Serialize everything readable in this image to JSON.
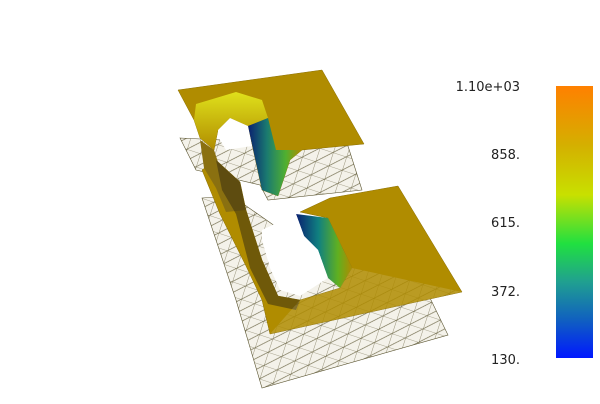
{
  "colorbar": {
    "labels": [
      "1.10e+03",
      "858.",
      "615.",
      "372.",
      "130."
    ],
    "colors": {
      "max": "#ff8000",
      "upper": "#d4b000",
      "mid_high": "#c8e000",
      "mid": "#20e040",
      "mid_low": "#20a090",
      "low": "#1060c0",
      "min": "#0018ff"
    }
  },
  "surface": {
    "base_color": "#b08c00",
    "mesh_color": "#4a4420",
    "highlight_color": "#e8f020",
    "deep_color": "#0a2a7a"
  }
}
